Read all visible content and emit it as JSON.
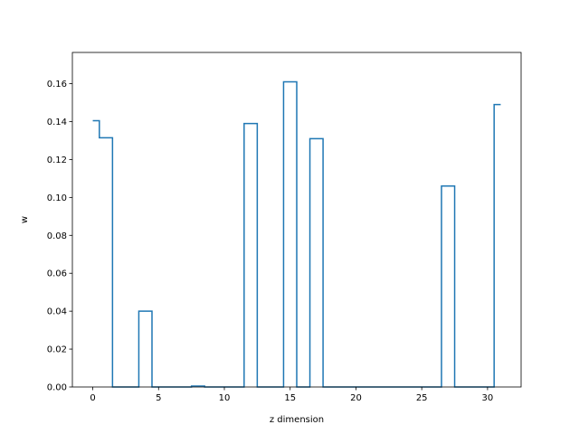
{
  "chart_data": {
    "type": "line",
    "drawstyle": "steps-mid",
    "xlabel": "z dimension",
    "ylabel": "w",
    "xlim": [
      -1.55,
      32.55
    ],
    "ylim": [
      0,
      0.1765
    ],
    "grid": false,
    "xticks": [
      0,
      5,
      10,
      15,
      20,
      25,
      30
    ],
    "yticks": [
      0.0,
      0.02,
      0.04,
      0.06,
      0.08,
      0.1,
      0.12,
      0.14,
      0.16
    ],
    "ytick_labels": [
      "0.00",
      "0.02",
      "0.04",
      "0.06",
      "0.08",
      "0.10",
      "0.12",
      "0.14",
      "0.16"
    ],
    "xtick_labels": [
      "0",
      "5",
      "10",
      "15",
      "20",
      "25",
      "30"
    ],
    "line_color": "#1f77b4",
    "series": [
      {
        "x": [
          0,
          1,
          2,
          3,
          4,
          5,
          6,
          7,
          8,
          9,
          10,
          11,
          12,
          13,
          14,
          15,
          16,
          17,
          18,
          19,
          20,
          21,
          22,
          23,
          24,
          25,
          26,
          27,
          28,
          29,
          30,
          31
        ],
        "values": [
          0.1405,
          0.1315,
          0,
          0,
          0.04,
          0,
          0,
          0,
          0.0005,
          0,
          0,
          0,
          0.139,
          0,
          0,
          0.161,
          0,
          0.131,
          0,
          0,
          0,
          0,
          0,
          0,
          0,
          0,
          0,
          0.106,
          0,
          0,
          0,
          0.149
        ]
      }
    ]
  }
}
